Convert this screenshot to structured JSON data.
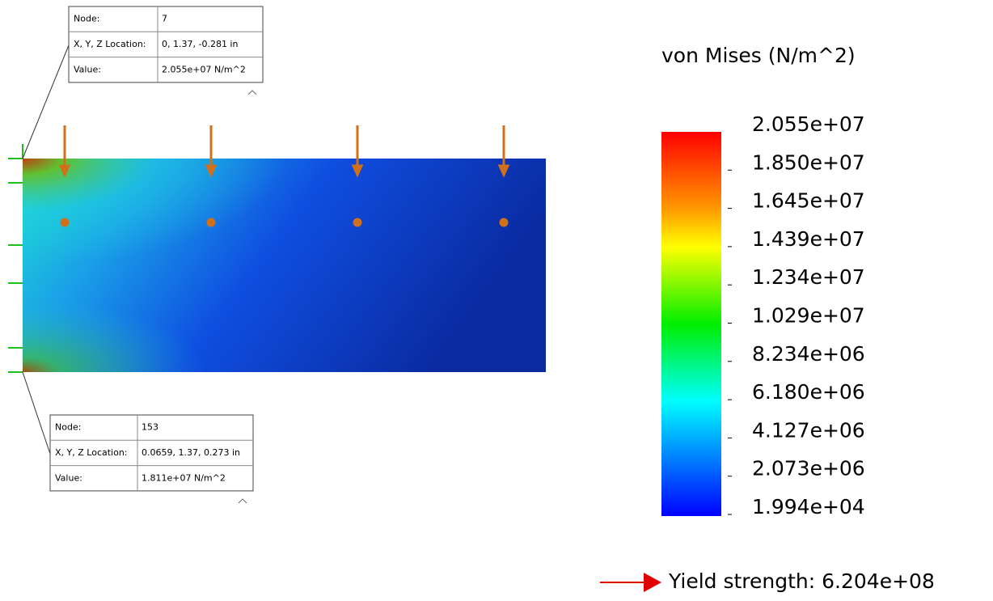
{
  "probes": [
    {
      "rows": [
        [
          "Node:",
          "7"
        ],
        [
          "X, Y, Z Location:",
          "0, 1.37, -0.281 in"
        ],
        [
          "Value:",
          "2.055e+07 N/m^2"
        ]
      ]
    },
    {
      "rows": [
        [
          "Node:",
          "153"
        ],
        [
          "X, Y, Z Location:",
          "0.0659, 1.37, 0.273 in"
        ],
        [
          "Value:",
          "1.811e+07 N/m^2"
        ]
      ]
    }
  ],
  "legend": {
    "title": "von Mises (N/m^2)",
    "labels": [
      "2.055e+07",
      "1.850e+07",
      "1.645e+07",
      "1.439e+07",
      "1.234e+07",
      "1.029e+07",
      "8.234e+06",
      "6.180e+06",
      "4.127e+06",
      "2.073e+06",
      "1.994e+04"
    ]
  },
  "yield": "Yield strength: 6.204e+08"
}
